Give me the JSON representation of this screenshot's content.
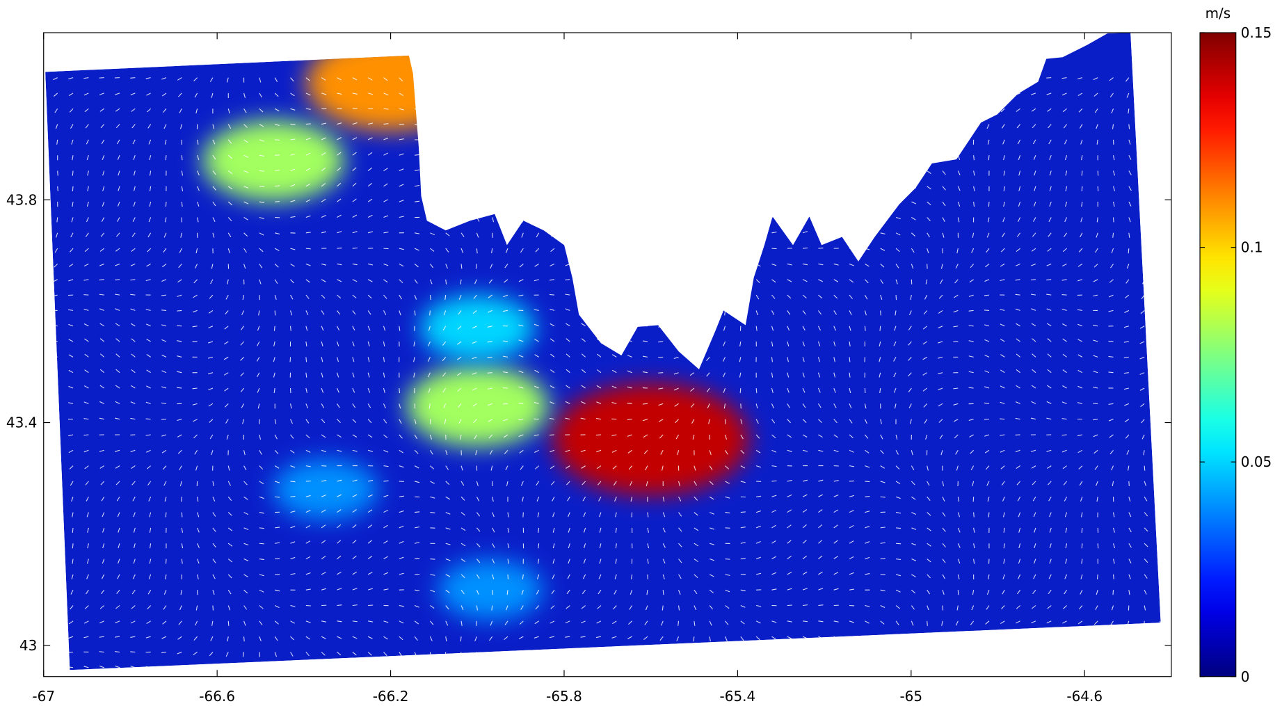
{
  "chart_data": {
    "type": "speed-map",
    "xlim": [
      -67,
      -64.4
    ],
    "ylim": [
      42.944,
      44.1
    ],
    "xticks": [
      -67,
      -66.6,
      -66.2,
      -65.8,
      -65.4,
      -65,
      -64.6
    ],
    "yticks": [
      43,
      43.4,
      43.8
    ],
    "colorbar": {
      "label": "m/s",
      "lim": [
        0,
        0.15
      ],
      "ticks": [
        0,
        0.05,
        0.1,
        0.15
      ],
      "colormap": "jet"
    },
    "hotspots": [
      {
        "lon": -65.6,
        "lat": 43.37,
        "speed": 0.14
      },
      {
        "lon": -66.2,
        "lat": 44.01,
        "speed": 0.11
      },
      {
        "lon": -66.0,
        "lat": 43.43,
        "speed": 0.08
      },
      {
        "lon": -66.47,
        "lat": 43.87,
        "speed": 0.08
      },
      {
        "lon": -66.0,
        "lat": 43.57,
        "speed": 0.05
      },
      {
        "lon": -66.35,
        "lat": 43.28,
        "speed": 0.04
      },
      {
        "lon": -65.97,
        "lat": 43.1,
        "speed": 0.04
      }
    ]
  }
}
